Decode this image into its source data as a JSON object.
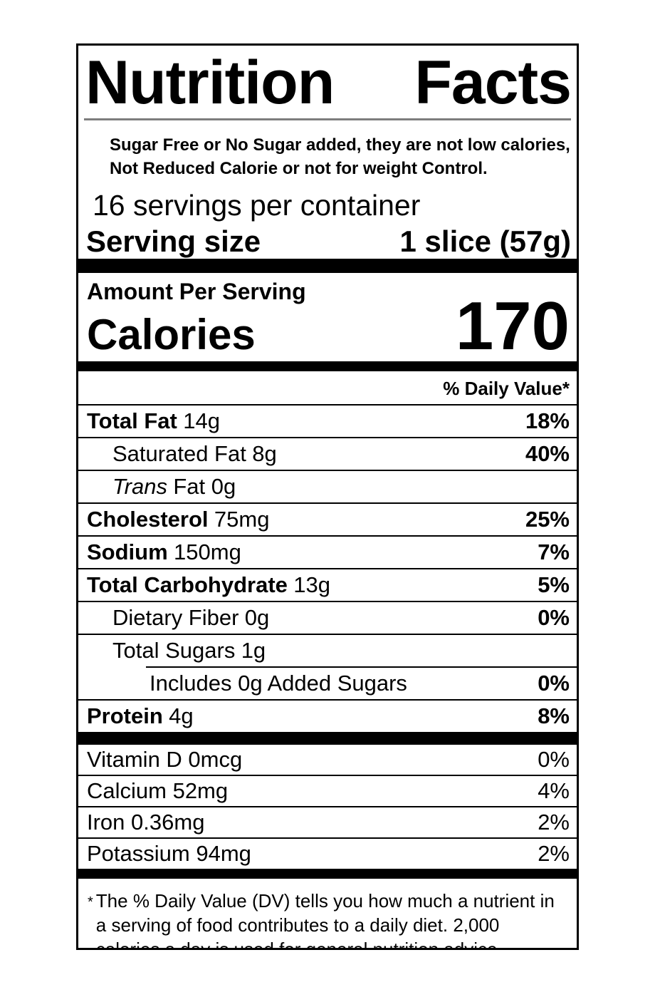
{
  "colors": {
    "text": "#000000",
    "background": "#ffffff",
    "title_rule": "#7d7d7d",
    "bar": "#000000"
  },
  "label": {
    "title_word1": "Nutrition",
    "title_word2": "Facts",
    "disclaimer": "Sugar Free or No Sugar added, they are not low calories, Not Reduced Calorie or not for weight Control.",
    "servings_per_container": "16 servings per container",
    "serving_size": {
      "label": "Serving size",
      "value": "1 slice (57g)"
    },
    "amount_per_serving": "Amount Per Serving",
    "calories": {
      "label": "Calories",
      "value": "170"
    },
    "daily_value_header": "% Daily Value*",
    "nutrients": [
      {
        "name": "Total Fat",
        "amount": "14g",
        "dv": "18%"
      },
      {
        "name": "Saturated Fat",
        "amount": "8g",
        "dv": "40%"
      },
      {
        "name": "Trans",
        "amount": "Fat 0g",
        "dv": ""
      },
      {
        "name": "Cholesterol",
        "amount": "75mg",
        "dv": "25%"
      },
      {
        "name": "Sodium",
        "amount": "150mg",
        "dv": "7%"
      },
      {
        "name": "Total Carbohydrate",
        "amount": "13g",
        "dv": "5%"
      },
      {
        "name": "Dietary Fiber",
        "amount": "0g",
        "dv": "0%"
      },
      {
        "name": "Total Sugars",
        "amount": "1g",
        "dv": ""
      },
      {
        "name": "Includes 0g Added Sugars",
        "amount": "",
        "dv": "0%"
      },
      {
        "name": "Protein",
        "amount": "4g",
        "dv": "8%"
      }
    ],
    "vitamins": [
      {
        "name": "Vitamin D 0mcg",
        "dv": "0%"
      },
      {
        "name": "Calcium 52mg",
        "dv": "4%"
      },
      {
        "name": "Iron 0.36mg",
        "dv": "2%"
      },
      {
        "name": "Potassium 94mg",
        "dv": "2%"
      }
    ],
    "footnote_marker": "*",
    "footnote": "The % Daily Value (DV) tells you how much a nutrient in a serving of food contributes to a daily diet. 2,000 calories a day is used for general nutrition advice."
  }
}
